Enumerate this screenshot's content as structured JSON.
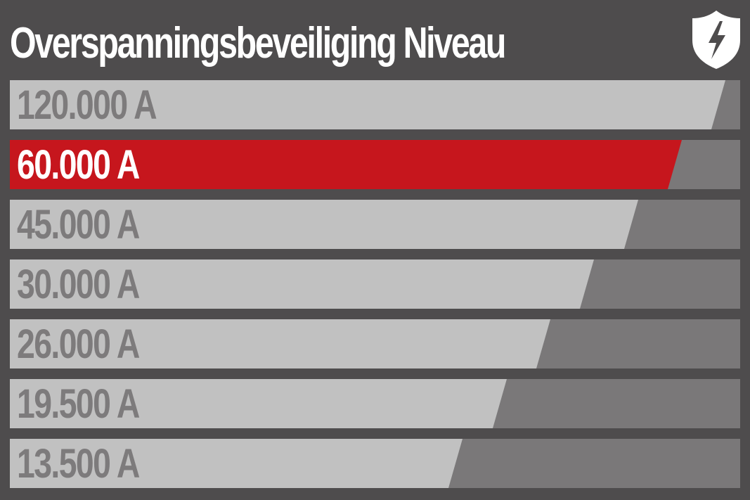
{
  "title": "Overspanningsbeveiliging Niveau",
  "icon": "shield-lightning-icon",
  "colors": {
    "background": "#4e4c4d",
    "row_inactive": "#c1c1c1",
    "row_track": "#7a7879",
    "row_active": "#c6161d",
    "label_inactive": "#7d7b7c",
    "label_active": "#ffffff"
  },
  "levels": [
    {
      "label": "120.000 A",
      "level": 0.98,
      "active": false
    },
    {
      "label": "60.000 A",
      "level": 0.92,
      "active": true
    },
    {
      "label": "45.000 A",
      "level": 0.86,
      "active": false
    },
    {
      "label": "30.000 A",
      "level": 0.8,
      "active": false
    },
    {
      "label": "26.000 A",
      "level": 0.74,
      "active": false
    },
    {
      "label": "19.500 A",
      "level": 0.68,
      "active": false
    },
    {
      "label": "13.500 A",
      "level": 0.62,
      "active": false
    }
  ]
}
